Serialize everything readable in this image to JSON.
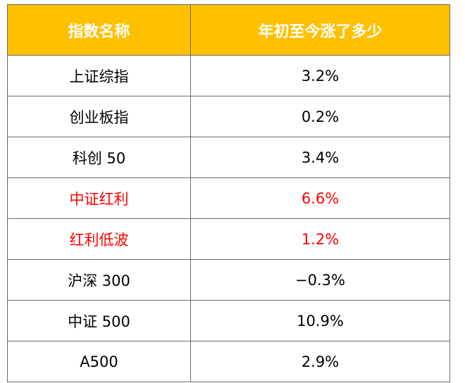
{
  "table": {
    "headers": [
      "指数名称",
      "年初至今涨了多少"
    ],
    "rows": [
      {
        "name": "上证综指",
        "value": "3.2%",
        "highlight": false
      },
      {
        "name": "创业板指",
        "value": "0.2%",
        "highlight": false
      },
      {
        "name": "科创 50",
        "value": "3.4%",
        "highlight": false
      },
      {
        "name": "中证红利",
        "value": "6.6%",
        "highlight": true
      },
      {
        "name": "红利低波",
        "value": "1.2%",
        "highlight": true
      },
      {
        "name": "沪深 300",
        "value": "−0.3%",
        "highlight": false
      },
      {
        "name": "中证 500",
        "value": "10.9%",
        "highlight": false
      },
      {
        "name": "A500",
        "value": "2.9%",
        "highlight": false
      }
    ]
  },
  "colors": {
    "header_bg": "#ffc000",
    "header_text": "#ffffff",
    "highlight_text": "#ff0000",
    "border": "#6b6b6b"
  }
}
